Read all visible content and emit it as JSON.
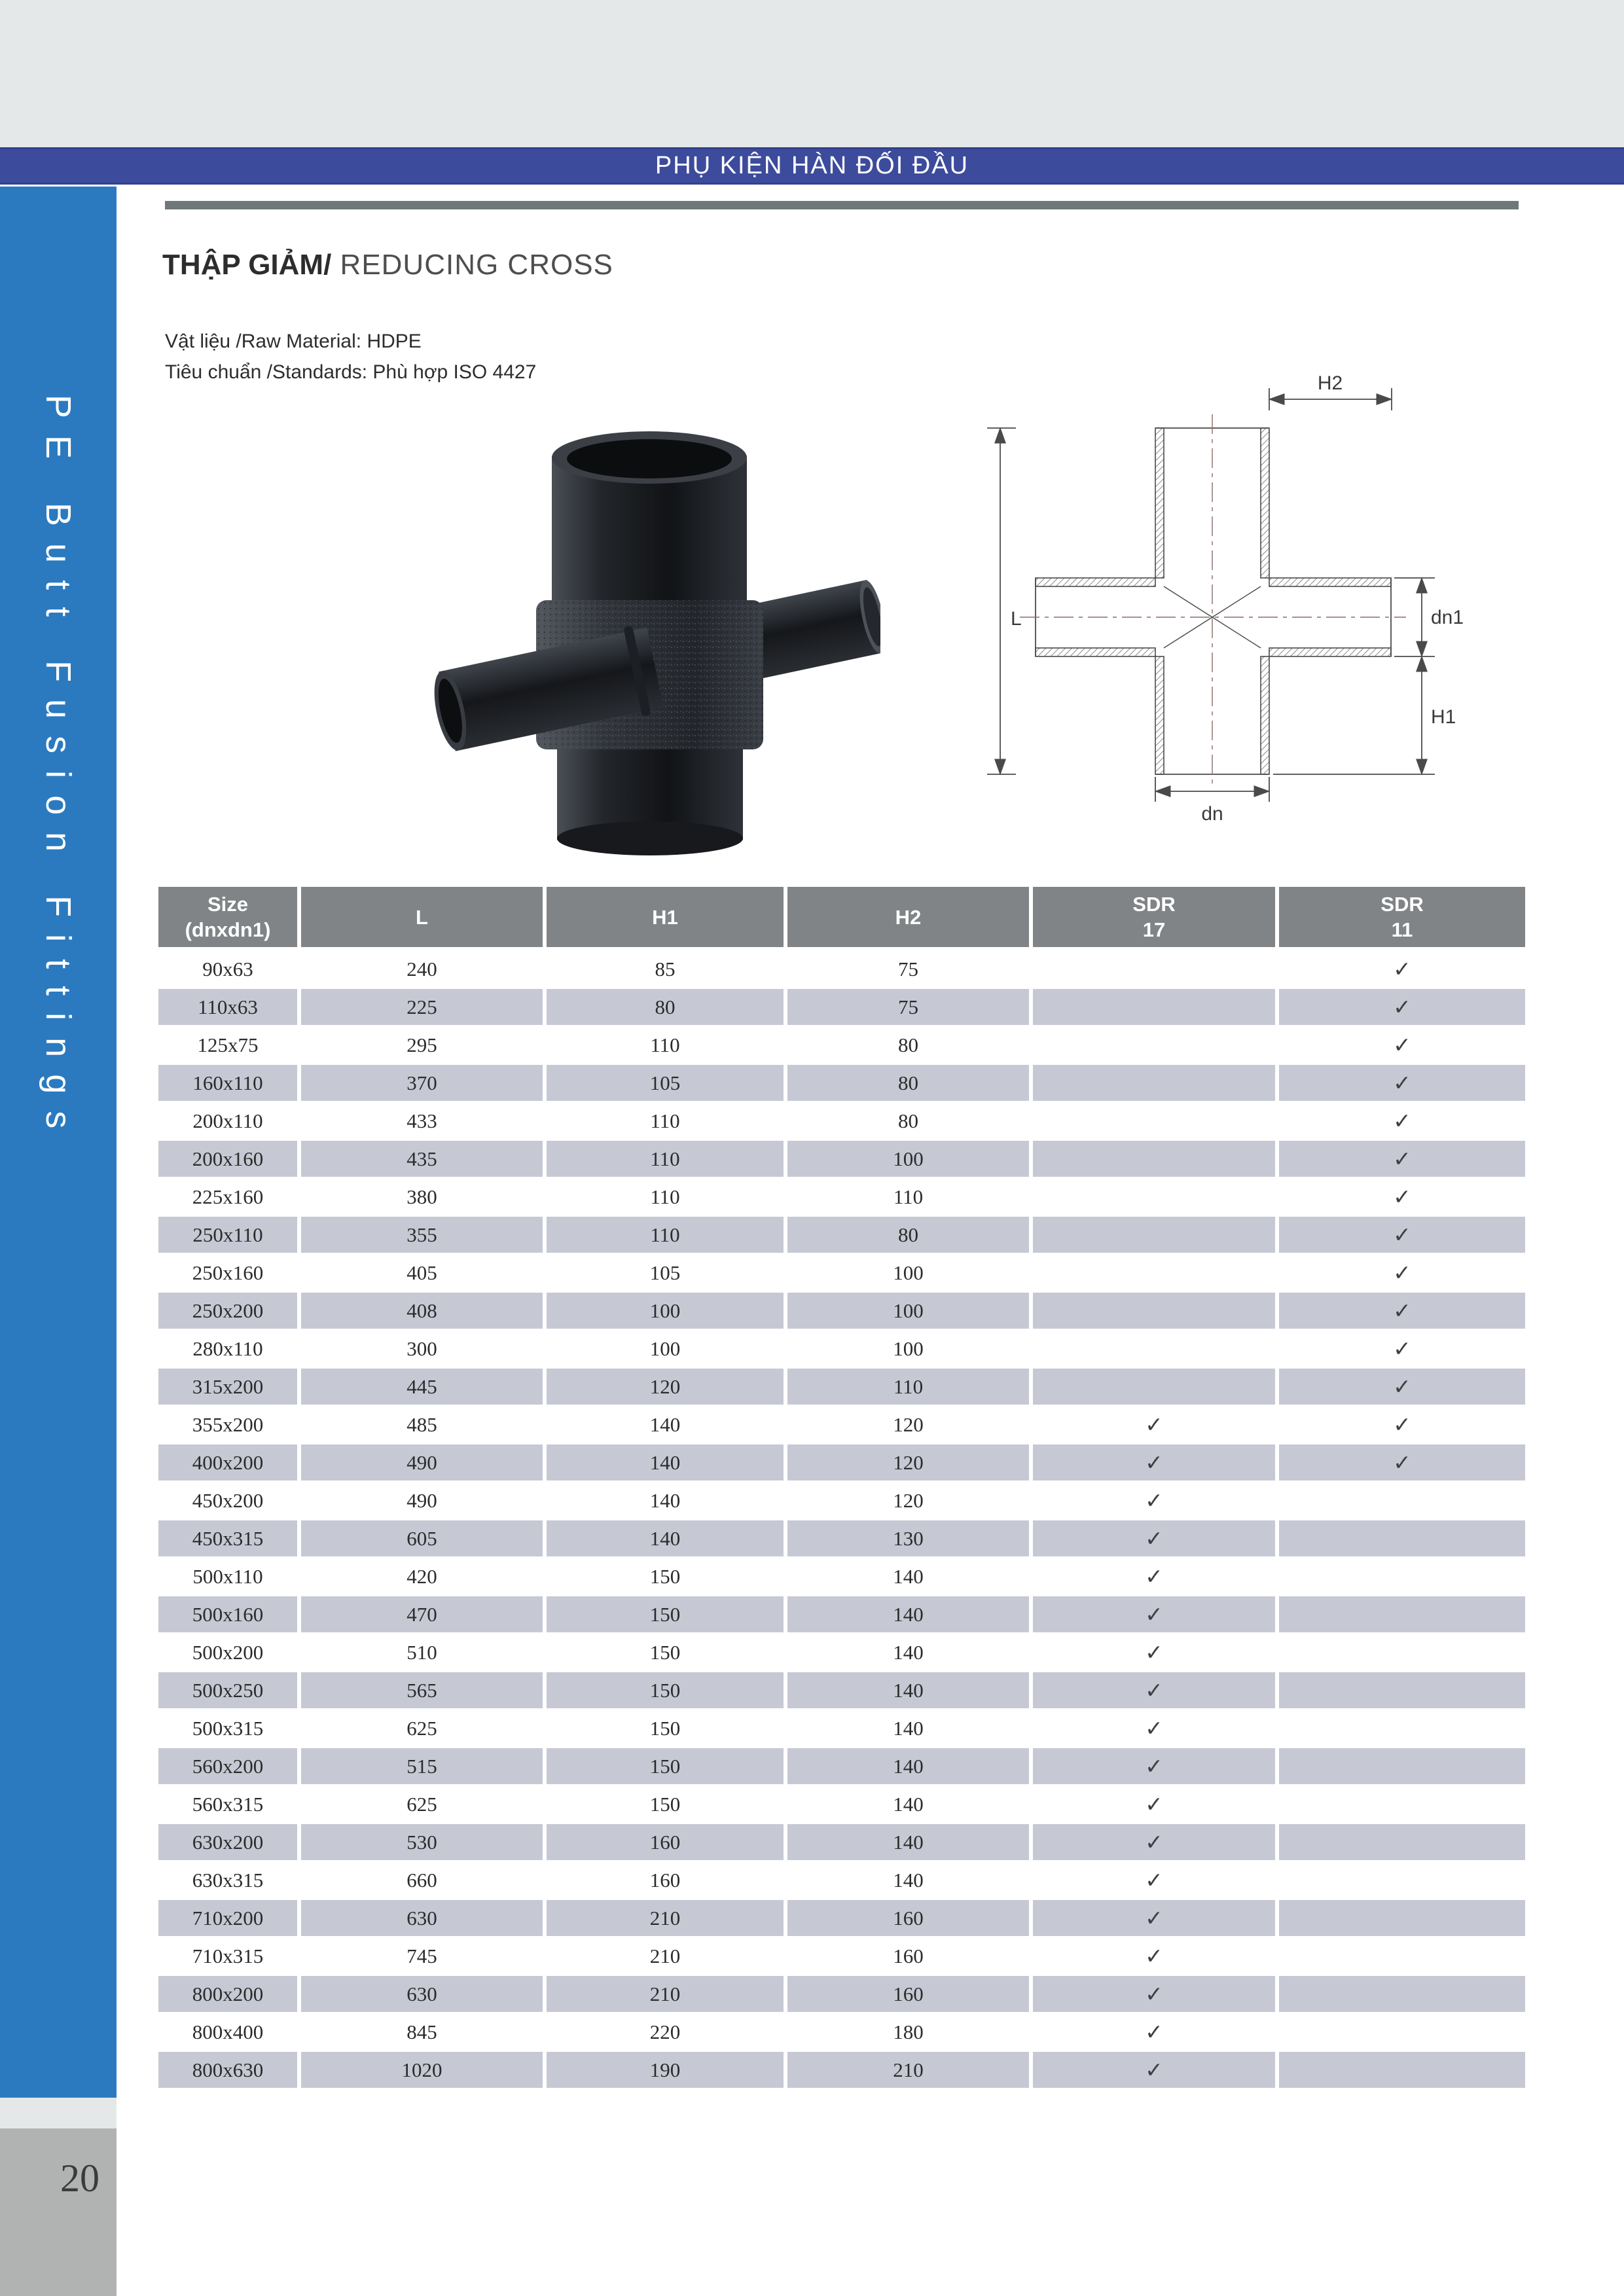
{
  "banner": {
    "title": "PHỤ KIỆN HÀN ĐỐI ĐẦU"
  },
  "sidebar": {
    "vertical_text": "PE Butt Fusion Fittings"
  },
  "page": {
    "number": "20"
  },
  "section": {
    "title_bold": "THẬP GIẢM/",
    "title_regular": " REDUCING CROSS",
    "material_line1": "Vật liệu /Raw Material: HDPE",
    "material_line2": "Tiêu chuẩn /Standards: Phù hợp ISO 4427"
  },
  "diagram": {
    "labels": {
      "h2": "H2",
      "l": "L",
      "dn1": "dn1",
      "h1": "H1",
      "dn": "dn"
    }
  },
  "colors": {
    "banner_navy": "#3d4b9c",
    "sidebar_blue": "#2b7ac0",
    "table_header_gray": "#808486",
    "row_stripe_gray": "#c6c9d4",
    "divider_gray": "#6e7878",
    "top_band_gray": "#e5e8e8",
    "pagenum_gray": "#b1b3b2"
  },
  "table": {
    "check_glyph": "✓",
    "headers": [
      [
        "Size",
        "(dnxdn1)"
      ],
      [
        "L"
      ],
      [
        "H1"
      ],
      [
        "H2"
      ],
      [
        "SDR",
        "17"
      ],
      [
        "SDR",
        "11"
      ]
    ],
    "rows": [
      [
        "90x63",
        "240",
        "85",
        "75",
        false,
        true
      ],
      [
        "110x63",
        "225",
        "80",
        "75",
        false,
        true
      ],
      [
        "125x75",
        "295",
        "110",
        "80",
        false,
        true
      ],
      [
        "160x110",
        "370",
        "105",
        "80",
        false,
        true
      ],
      [
        "200x110",
        "433",
        "110",
        "80",
        false,
        true
      ],
      [
        "200x160",
        "435",
        "110",
        "100",
        false,
        true
      ],
      [
        "225x160",
        "380",
        "110",
        "110",
        false,
        true
      ],
      [
        "250x110",
        "355",
        "110",
        "80",
        false,
        true
      ],
      [
        "250x160",
        "405",
        "105",
        "100",
        false,
        true
      ],
      [
        "250x200",
        "408",
        "100",
        "100",
        false,
        true
      ],
      [
        "280x110",
        "300",
        "100",
        "100",
        false,
        true
      ],
      [
        "315x200",
        "445",
        "120",
        "110",
        false,
        true
      ],
      [
        "355x200",
        "485",
        "140",
        "120",
        true,
        true
      ],
      [
        "400x200",
        "490",
        "140",
        "120",
        true,
        true
      ],
      [
        "450x200",
        "490",
        "140",
        "120",
        true,
        false
      ],
      [
        "450x315",
        "605",
        "140",
        "130",
        true,
        false
      ],
      [
        "500x110",
        "420",
        "150",
        "140",
        true,
        false
      ],
      [
        "500x160",
        "470",
        "150",
        "140",
        true,
        false
      ],
      [
        "500x200",
        "510",
        "150",
        "140",
        true,
        false
      ],
      [
        "500x250",
        "565",
        "150",
        "140",
        true,
        false
      ],
      [
        "500x315",
        "625",
        "150",
        "140",
        true,
        false
      ],
      [
        "560x200",
        "515",
        "150",
        "140",
        true,
        false
      ],
      [
        "560x315",
        "625",
        "150",
        "140",
        true,
        false
      ],
      [
        "630x200",
        "530",
        "160",
        "140",
        true,
        false
      ],
      [
        "630x315",
        "660",
        "160",
        "140",
        true,
        false
      ],
      [
        "710x200",
        "630",
        "210",
        "160",
        true,
        false
      ],
      [
        "710x315",
        "745",
        "210",
        "160",
        true,
        false
      ],
      [
        "800x200",
        "630",
        "210",
        "160",
        true,
        false
      ],
      [
        "800x400",
        "845",
        "220",
        "180",
        true,
        false
      ],
      [
        "800x630",
        "1020",
        "190",
        "210",
        true,
        false
      ]
    ]
  }
}
